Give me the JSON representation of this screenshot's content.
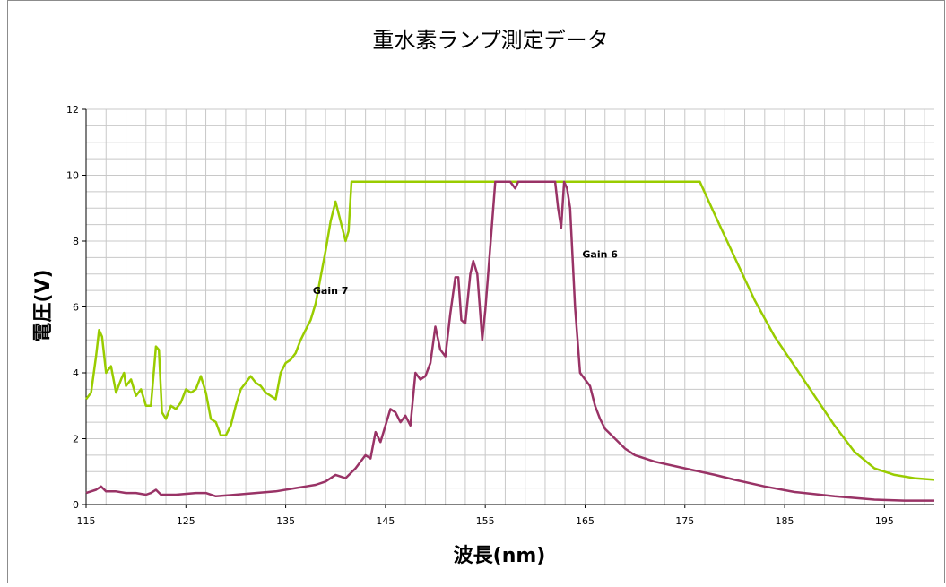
{
  "chart_data": {
    "type": "line",
    "title": "重水素ランプ測定データ",
    "xlabel": "波長(nm)",
    "ylabel": "電圧(V)",
    "xlim": [
      115,
      200
    ],
    "ylim": [
      0,
      12
    ],
    "x_ticks": [
      "115",
      "125",
      "135",
      "145",
      "155",
      "165",
      "175",
      "185",
      "195"
    ],
    "y_ticks": [
      "0",
      "2",
      "4",
      "6",
      "8",
      "10",
      "12"
    ],
    "grid": true,
    "legend": "none",
    "annotations": [
      {
        "text": "Gain 7",
        "x": 139.5,
        "y": 6.4
      },
      {
        "text": "Gain 6",
        "x": 166.5,
        "y": 7.5
      }
    ],
    "series": [
      {
        "color": "#99cc00",
        "points": [
          [
            115,
            3.2
          ],
          [
            115.5,
            3.4
          ],
          [
            116,
            4.5
          ],
          [
            116.3,
            5.3
          ],
          [
            116.6,
            5.1
          ],
          [
            117,
            4.0
          ],
          [
            117.5,
            4.2
          ],
          [
            118,
            3.4
          ],
          [
            118.5,
            3.8
          ],
          [
            118.8,
            4.0
          ],
          [
            119,
            3.6
          ],
          [
            119.5,
            3.8
          ],
          [
            120,
            3.3
          ],
          [
            120.5,
            3.5
          ],
          [
            121,
            3.0
          ],
          [
            121.5,
            3.0
          ],
          [
            122,
            4.8
          ],
          [
            122.3,
            4.7
          ],
          [
            122.6,
            2.8
          ],
          [
            123,
            2.6
          ],
          [
            123.5,
            3.0
          ],
          [
            124,
            2.9
          ],
          [
            124.5,
            3.1
          ],
          [
            125,
            3.5
          ],
          [
            125.5,
            3.4
          ],
          [
            126,
            3.5
          ],
          [
            126.5,
            3.9
          ],
          [
            127,
            3.4
          ],
          [
            127.5,
            2.6
          ],
          [
            128,
            2.5
          ],
          [
            128.5,
            2.1
          ],
          [
            129,
            2.1
          ],
          [
            129.5,
            2.4
          ],
          [
            130,
            3.0
          ],
          [
            130.5,
            3.5
          ],
          [
            131,
            3.7
          ],
          [
            131.5,
            3.9
          ],
          [
            132,
            3.7
          ],
          [
            132.5,
            3.6
          ],
          [
            133,
            3.4
          ],
          [
            133.5,
            3.3
          ],
          [
            134,
            3.2
          ],
          [
            134.5,
            4.0
          ],
          [
            135,
            4.3
          ],
          [
            135.5,
            4.4
          ],
          [
            136,
            4.6
          ],
          [
            136.5,
            5.0
          ],
          [
            137,
            5.3
          ],
          [
            137.5,
            5.6
          ],
          [
            138,
            6.1
          ],
          [
            138.5,
            6.9
          ],
          [
            139,
            7.7
          ],
          [
            139.5,
            8.6
          ],
          [
            140,
            9.2
          ],
          [
            140.5,
            8.6
          ],
          [
            141,
            8.0
          ],
          [
            141.3,
            8.3
          ],
          [
            141.6,
            9.8
          ],
          [
            150,
            9.8
          ],
          [
            160,
            9.8
          ],
          [
            170,
            9.8
          ],
          [
            176.5,
            9.8
          ],
          [
            178,
            8.8
          ],
          [
            180,
            7.5
          ],
          [
            182,
            6.2
          ],
          [
            184,
            5.1
          ],
          [
            186,
            4.2
          ],
          [
            188,
            3.3
          ],
          [
            190,
            2.4
          ],
          [
            192,
            1.6
          ],
          [
            194,
            1.1
          ],
          [
            196,
            0.9
          ],
          [
            198,
            0.8
          ],
          [
            200,
            0.75
          ]
        ]
      },
      {
        "color": "#993366",
        "points": [
          [
            115,
            0.35
          ],
          [
            116,
            0.45
          ],
          [
            116.5,
            0.55
          ],
          [
            117,
            0.4
          ],
          [
            118,
            0.4
          ],
          [
            119,
            0.35
          ],
          [
            120,
            0.35
          ],
          [
            121,
            0.3
          ],
          [
            121.5,
            0.35
          ],
          [
            122,
            0.45
          ],
          [
            122.5,
            0.3
          ],
          [
            124,
            0.3
          ],
          [
            126,
            0.35
          ],
          [
            127,
            0.35
          ],
          [
            128,
            0.25
          ],
          [
            130,
            0.3
          ],
          [
            132,
            0.35
          ],
          [
            134,
            0.4
          ],
          [
            136,
            0.5
          ],
          [
            137,
            0.55
          ],
          [
            138,
            0.6
          ],
          [
            139,
            0.7
          ],
          [
            140,
            0.9
          ],
          [
            141,
            0.8
          ],
          [
            142,
            1.1
          ],
          [
            143,
            1.5
          ],
          [
            143.5,
            1.4
          ],
          [
            144,
            2.2
          ],
          [
            144.5,
            1.9
          ],
          [
            145,
            2.4
          ],
          [
            145.5,
            2.9
          ],
          [
            146,
            2.8
          ],
          [
            146.5,
            2.5
          ],
          [
            147,
            2.7
          ],
          [
            147.5,
            2.4
          ],
          [
            148,
            4.0
          ],
          [
            148.5,
            3.8
          ],
          [
            149,
            3.9
          ],
          [
            149.5,
            4.3
          ],
          [
            150,
            5.4
          ],
          [
            150.5,
            4.7
          ],
          [
            151,
            4.5
          ],
          [
            151.5,
            5.8
          ],
          [
            152,
            6.9
          ],
          [
            152.3,
            6.9
          ],
          [
            152.6,
            5.6
          ],
          [
            153,
            5.5
          ],
          [
            153.5,
            7.0
          ],
          [
            153.8,
            7.4
          ],
          [
            154.2,
            7.0
          ],
          [
            154.7,
            5.0
          ],
          [
            155,
            5.9
          ],
          [
            155.5,
            7.8
          ],
          [
            156,
            9.8
          ],
          [
            157.5,
            9.8
          ],
          [
            158,
            9.6
          ],
          [
            158.3,
            9.8
          ],
          [
            162,
            9.8
          ],
          [
            162.3,
            9.0
          ],
          [
            162.6,
            8.4
          ],
          [
            162.9,
            9.8
          ],
          [
            163.2,
            9.6
          ],
          [
            163.5,
            9.0
          ],
          [
            164,
            6.0
          ],
          [
            164.5,
            4.0
          ],
          [
            165,
            3.8
          ],
          [
            165.5,
            3.6
          ],
          [
            166,
            3.0
          ],
          [
            166.5,
            2.6
          ],
          [
            167,
            2.3
          ],
          [
            168,
            2.0
          ],
          [
            169,
            1.7
          ],
          [
            170,
            1.5
          ],
          [
            172,
            1.3
          ],
          [
            175,
            1.1
          ],
          [
            178,
            0.9
          ],
          [
            180,
            0.75
          ],
          [
            183,
            0.55
          ],
          [
            186,
            0.38
          ],
          [
            190,
            0.25
          ],
          [
            194,
            0.15
          ],
          [
            197,
            0.12
          ],
          [
            200,
            0.12
          ]
        ]
      }
    ]
  }
}
